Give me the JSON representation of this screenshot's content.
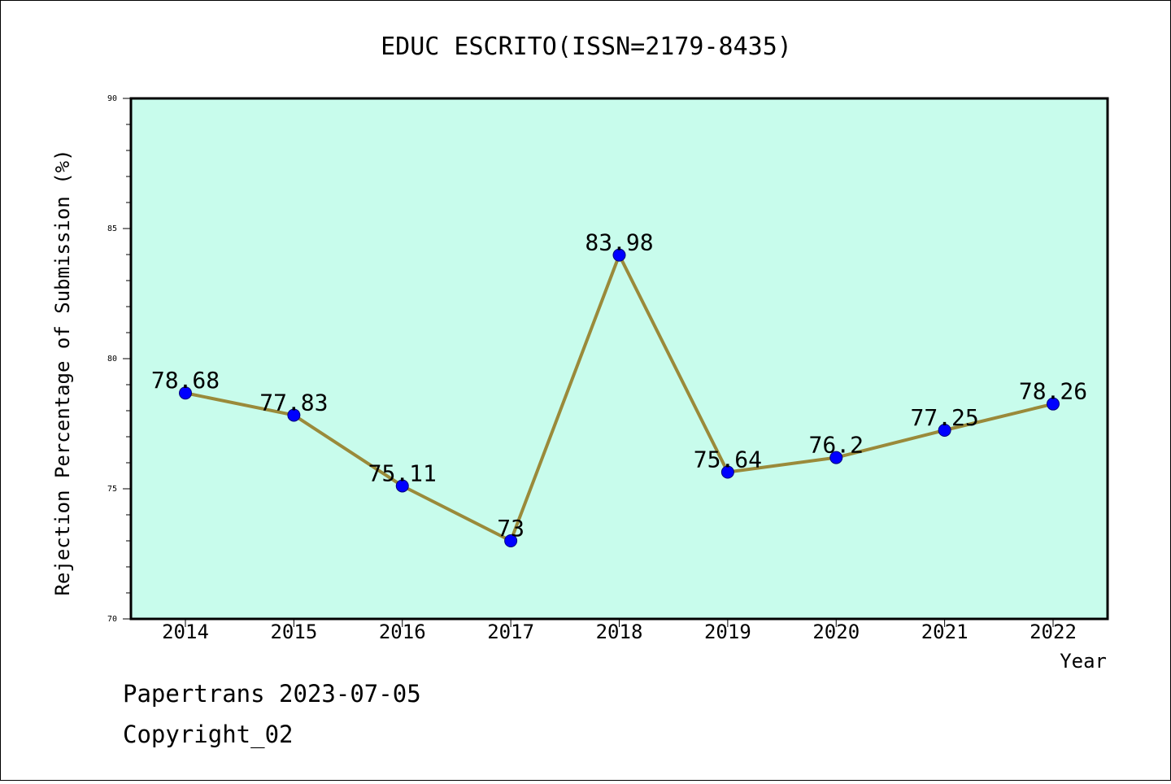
{
  "chart_data": {
    "type": "line",
    "title": "EDUC ESCRITO(ISSN=2179-8435)",
    "xlabel": "Year",
    "ylabel": "Rejection Percentage of Submission (%)",
    "categories": [
      "2014",
      "2015",
      "2016",
      "2017",
      "2018",
      "2019",
      "2020",
      "2021",
      "2022"
    ],
    "values": [
      78.68,
      77.83,
      75.11,
      73,
      83.98,
      75.64,
      76.2,
      77.25,
      78.26
    ],
    "data_labels": [
      "78.68",
      "77.83",
      "75.11",
      "73",
      "83.98",
      "75.64",
      "76.2",
      "77.25",
      "78.26"
    ],
    "ylim": [
      70,
      90
    ],
    "y_ticks": [
      70,
      75,
      80,
      85,
      90
    ],
    "grid": false,
    "colors": {
      "plot_background": "#c8fcec",
      "line": "#9a8a3a",
      "marker": "#0000ff"
    }
  },
  "footer": {
    "line1": "Papertrans 2023-07-05",
    "line2": "Copyright_02"
  }
}
